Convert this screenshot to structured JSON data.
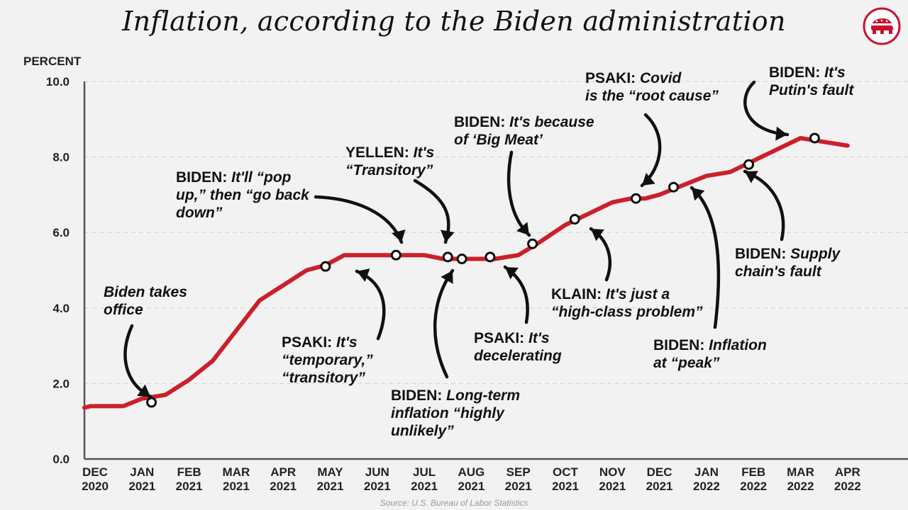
{
  "title": "Inflation, according to the Biden administration",
  "source": "Source: U.S. Bureau of Labor Statistics",
  "logo": {
    "name": "republican-elephant-logo",
    "color": "#c8102e"
  },
  "colors": {
    "line": "#cc1f2a",
    "grid": "#cfcfcf",
    "axis": "#555555",
    "background": "#f2f2f2"
  },
  "chart_data": {
    "type": "line",
    "ylabel": "PERCENT",
    "xlabel": "",
    "ylim": [
      0,
      10
    ],
    "yticks": [
      "0.0",
      "2.0",
      "4.0",
      "6.0",
      "8.0",
      "10.0"
    ],
    "grid": true,
    "x_categories": [
      [
        "DEC",
        "2020"
      ],
      [
        "JAN",
        "2021"
      ],
      [
        "FEB",
        "2021"
      ],
      [
        "MAR",
        "2021"
      ],
      [
        "APR",
        "2021"
      ],
      [
        "MAY",
        "2021"
      ],
      [
        "JUN",
        "2021"
      ],
      [
        "JUL",
        "2021"
      ],
      [
        "AUG",
        "2021"
      ],
      [
        "SEP",
        "2021"
      ],
      [
        "OCT",
        "2021"
      ],
      [
        "NOV",
        "2021"
      ],
      [
        "DEC",
        "2021"
      ],
      [
        "JAN",
        "2022"
      ],
      [
        "FEB",
        "2022"
      ],
      [
        "MAR",
        "2022"
      ],
      [
        "APR",
        "2022"
      ]
    ],
    "series": [
      {
        "values": [
          [
            -0.35,
            1.36
          ],
          [
            -0.1,
            1.4
          ],
          [
            0.6,
            1.4
          ],
          [
            1.0,
            1.6
          ],
          [
            1.5,
            1.7
          ],
          [
            2.0,
            2.1
          ],
          [
            2.5,
            2.6
          ],
          [
            3.0,
            3.4
          ],
          [
            3.5,
            4.2
          ],
          [
            4.0,
            4.6
          ],
          [
            4.5,
            5.0
          ],
          [
            4.8,
            5.1
          ],
          [
            5.0,
            5.2
          ],
          [
            5.3,
            5.4
          ],
          [
            5.8,
            5.4
          ],
          [
            6.0,
            5.4
          ],
          [
            6.5,
            5.4
          ],
          [
            7.0,
            5.4
          ],
          [
            7.4,
            5.3
          ],
          [
            7.6,
            5.3
          ],
          [
            8.0,
            5.3
          ],
          [
            8.5,
            5.3
          ],
          [
            9.0,
            5.4
          ],
          [
            9.4,
            5.7
          ],
          [
            10.0,
            6.2
          ],
          [
            10.5,
            6.5
          ],
          [
            11.0,
            6.8
          ],
          [
            11.4,
            6.9
          ],
          [
            11.7,
            6.9
          ],
          [
            12.0,
            7.0
          ],
          [
            12.4,
            7.2
          ],
          [
            13.0,
            7.5
          ],
          [
            13.5,
            7.6
          ],
          [
            14.0,
            7.9
          ],
          [
            14.5,
            8.2
          ],
          [
            15.0,
            8.5
          ],
          [
            15.5,
            8.4
          ],
          [
            16.0,
            8.3
          ]
        ]
      }
    ],
    "markers": [
      {
        "x": 1.2,
        "y": 1.5
      },
      {
        "x": 4.9,
        "y": 5.1
      },
      {
        "x": 6.4,
        "y": 5.4
      },
      {
        "x": 7.5,
        "y": 5.35
      },
      {
        "x": 7.8,
        "y": 5.3
      },
      {
        "x": 8.4,
        "y": 5.35
      },
      {
        "x": 9.3,
        "y": 5.7
      },
      {
        "x": 10.2,
        "y": 6.35
      },
      {
        "x": 11.5,
        "y": 6.9
      },
      {
        "x": 12.3,
        "y": 7.2
      },
      {
        "x": 13.9,
        "y": 7.8
      },
      {
        "x": 15.3,
        "y": 8.5
      }
    ],
    "annotations": [
      {
        "who": "",
        "lines": [
          "Biden takes",
          "office"
        ]
      },
      {
        "who": "BIDEN:",
        "lines": [
          "It'll “pop",
          "up,” then “go back",
          "down”"
        ]
      },
      {
        "who": "YELLEN:",
        "lines": [
          "It's",
          "“Transitory”"
        ]
      },
      {
        "who": "BIDEN:",
        "lines": [
          "It's because",
          "of ‘Big Meat’"
        ]
      },
      {
        "who": "PSAKI:",
        "lines": [
          "Covid",
          "is the “root cause”"
        ]
      },
      {
        "who": "BIDEN:",
        "lines": [
          "It's",
          "Putin's fault"
        ]
      },
      {
        "who": "PSAKI:",
        "lines": [
          "It's",
          "“temporary,”",
          "“transitory”"
        ]
      },
      {
        "who": "BIDEN:",
        "lines": [
          "Long-term",
          "inflation “highly",
          "unlikely”"
        ]
      },
      {
        "who": "PSAKI:",
        "lines": [
          "It's",
          "decelerating"
        ]
      },
      {
        "who": "KLAIN:",
        "lines": [
          "It's just a",
          "“high-class problem”"
        ]
      },
      {
        "who": "BIDEN:",
        "lines": [
          "Inflation",
          "at “peak”"
        ]
      },
      {
        "who": "BIDEN:",
        "lines": [
          "Supply",
          "chain's fault"
        ]
      }
    ]
  }
}
